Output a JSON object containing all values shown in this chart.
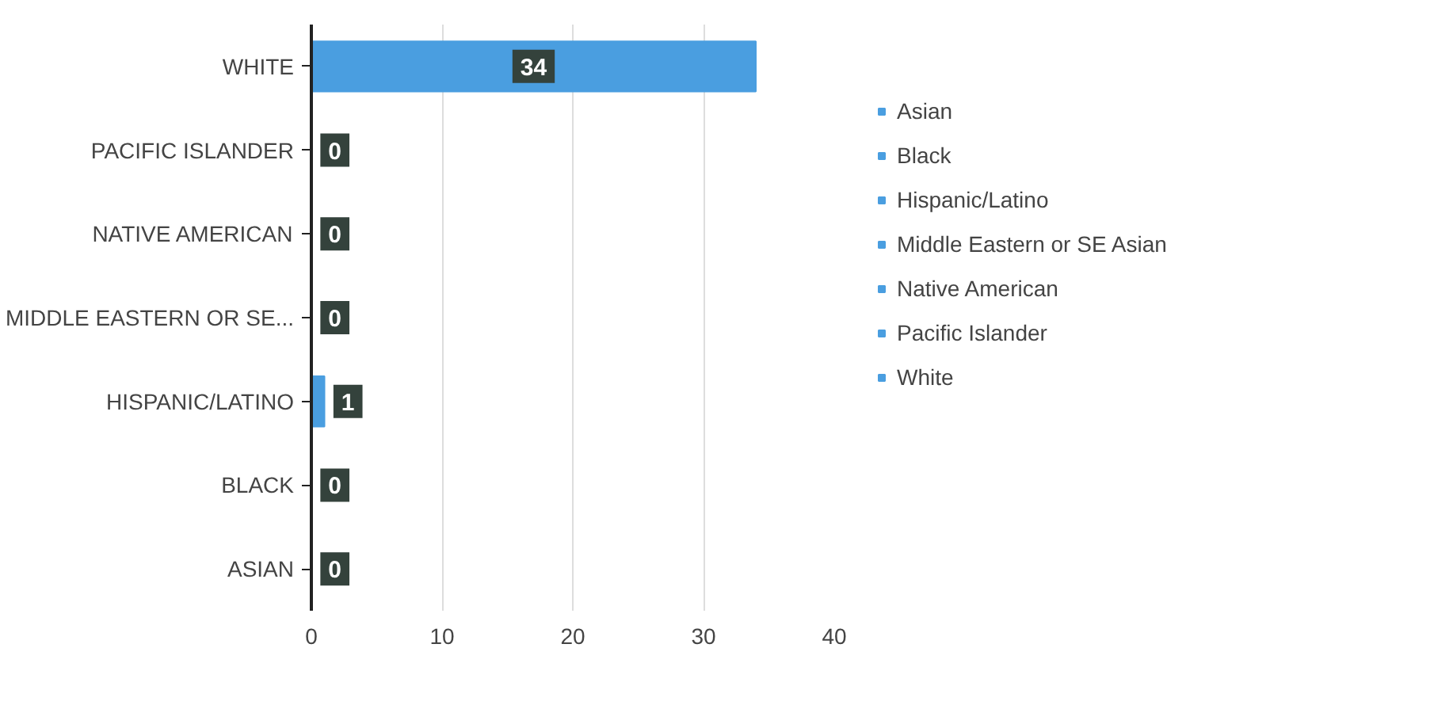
{
  "chart_data": {
    "type": "bar",
    "orientation": "horizontal",
    "categories": [
      "WHITE",
      "PACIFIC ISLANDER",
      "NATIVE AMERICAN",
      "MIDDLE EASTERN OR SE...",
      "HISPANIC/LATINO",
      "BLACK",
      "ASIAN"
    ],
    "series": [
      {
        "name": "Asian",
        "color": "#4a9ee0",
        "values": [
          null,
          null,
          null,
          null,
          null,
          null,
          0
        ]
      },
      {
        "name": "Black",
        "color": "#4a9ee0",
        "values": [
          null,
          null,
          null,
          null,
          null,
          0,
          null
        ]
      },
      {
        "name": "Hispanic/Latino",
        "color": "#4a9ee0",
        "values": [
          null,
          null,
          null,
          null,
          1,
          null,
          null
        ]
      },
      {
        "name": "Middle Eastern or SE Asian",
        "color": "#4a9ee0",
        "values": [
          null,
          null,
          null,
          0,
          null,
          null,
          null
        ]
      },
      {
        "name": "Native American",
        "color": "#4a9ee0",
        "values": [
          null,
          null,
          0,
          null,
          null,
          null,
          null
        ]
      },
      {
        "name": "Pacific Islander",
        "color": "#4a9ee0",
        "values": [
          null,
          0,
          null,
          null,
          null,
          null,
          null
        ]
      },
      {
        "name": "White",
        "color": "#4a9ee0",
        "values": [
          34,
          null,
          null,
          null,
          null,
          null,
          null
        ]
      }
    ],
    "xlim": [
      0,
      40
    ],
    "xticks": [
      0,
      10,
      20,
      30,
      40
    ],
    "grid": "x",
    "legend": "right",
    "data_labels": true
  }
}
